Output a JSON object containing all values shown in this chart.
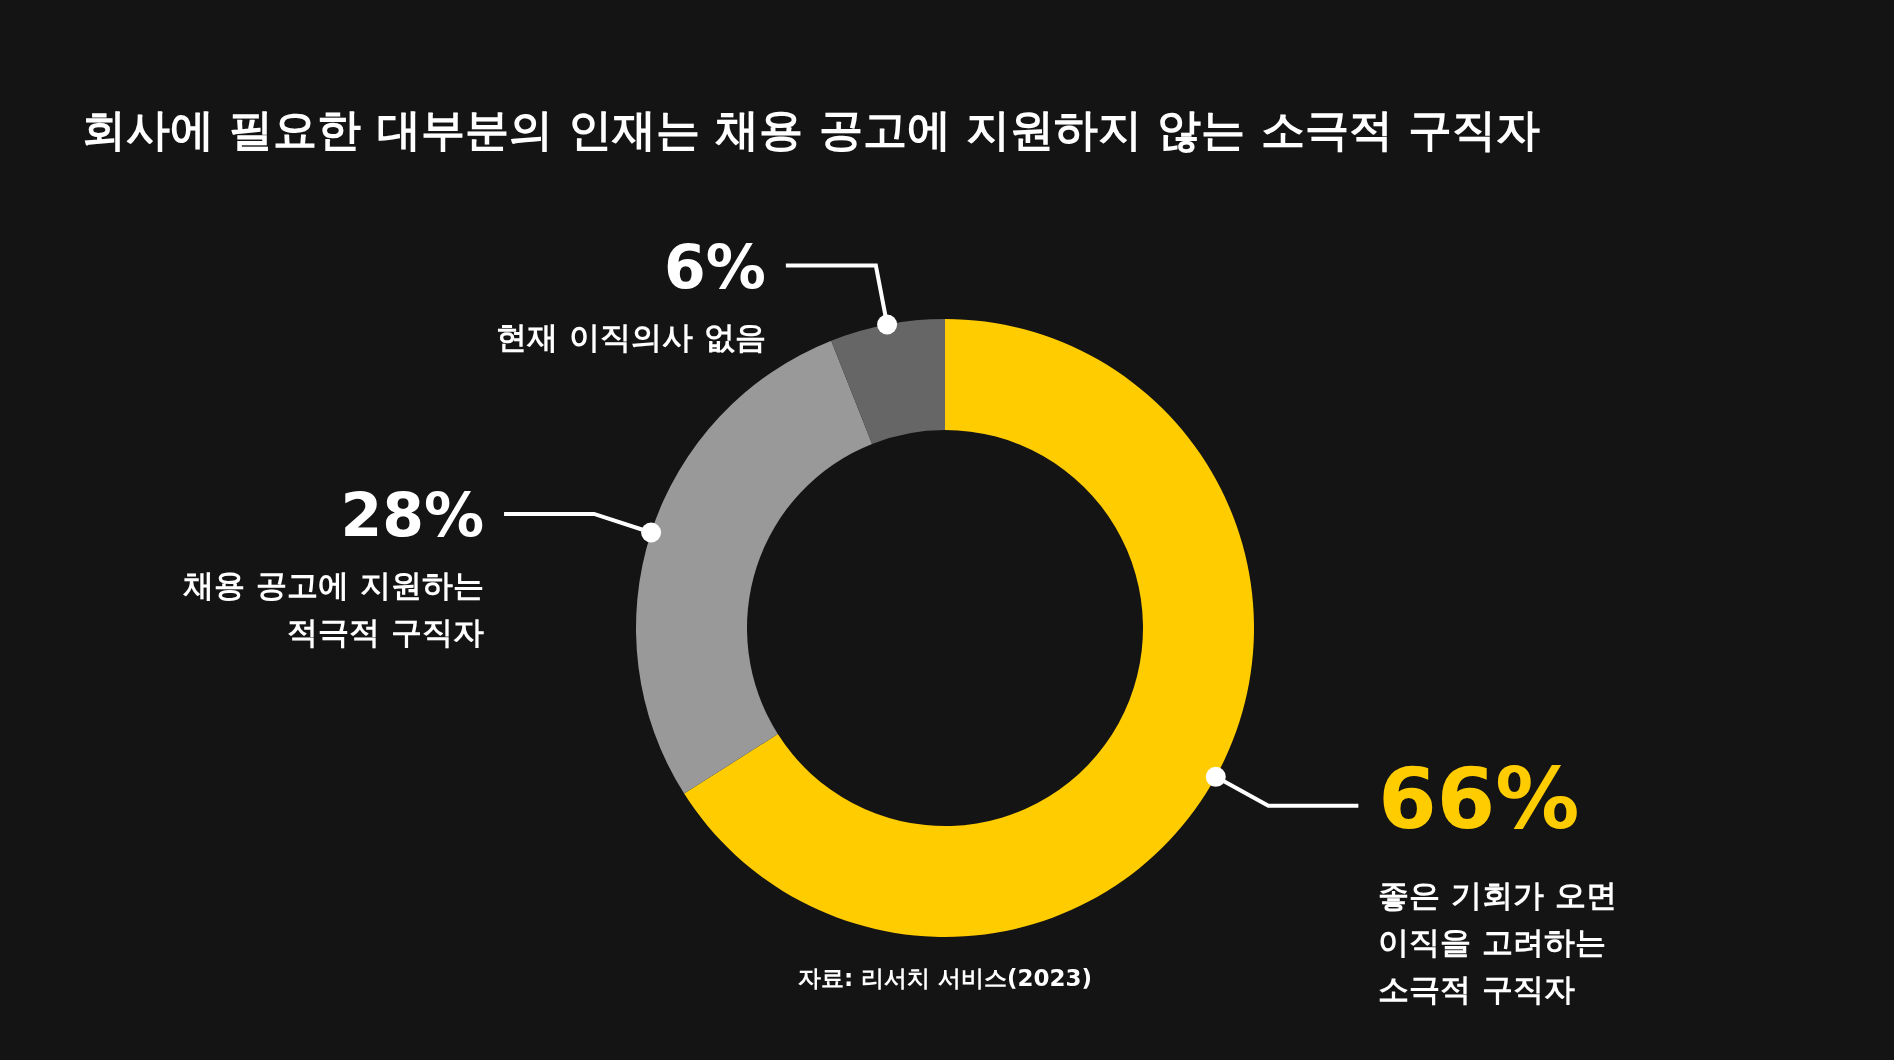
{
  "chart_data": {
    "type": "donut",
    "title": "회사에 필요한 대부분의 인재는 채용 공고에 지원하지 않는 소극적 구직자",
    "categories": [
      "좋은 기회가 오면\n이직을 고려하는\n소극적 구직자",
      "채용 공고에 지원하는\n적극적 구직자",
      "현재 이직의사 없음"
    ],
    "values": [
      66,
      28,
      6
    ],
    "colors": [
      "#ffcc00",
      "#999999",
      "#666666"
    ],
    "value_labels": [
      "66%",
      "28%",
      "6%"
    ],
    "annotations": [
      "자료: 리서치 서비스(2023)"
    ]
  }
}
